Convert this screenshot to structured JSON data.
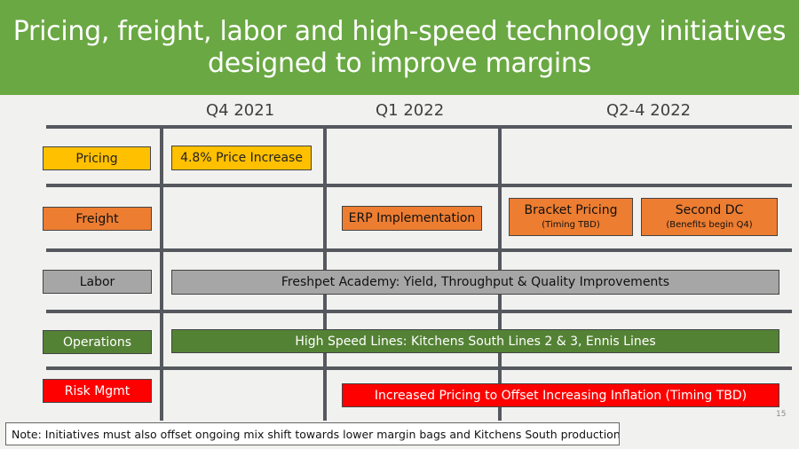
{
  "title": "Pricing, freight, labor and high-speed technology initiatives designed to improve margins",
  "columns": [
    "Q4 2021",
    "Q1 2022",
    "Q2-4 2022"
  ],
  "rows": {
    "pricing": "Pricing",
    "freight": "Freight",
    "labor": "Labor",
    "operations": "Operations",
    "risk": "Risk Mgmt"
  },
  "initiatives": {
    "price_increase": "4.8% Price Increase",
    "erp": "ERP Implementation",
    "bracket_pricing": "Bracket Pricing",
    "bracket_pricing_note": "(Timing TBD)",
    "second_dc": "Second DC",
    "second_dc_note": "(Benefits begin Q4)",
    "academy": "Freshpet Academy:  Yield, Throughput & Quality Improvements",
    "high_speed": "High Speed Lines:  Kitchens South Lines 2 & 3, Ennis Lines",
    "inflation": "Increased Pricing to Offset Increasing Inflation (Timing TBD)"
  },
  "page_number": "15",
  "note": "Note:  Initiatives must also offset ongoing mix shift towards lower margin bags and Kitchens South production",
  "colors": {
    "header_green": "#6aa843",
    "yellow": "#ffc000",
    "orange": "#ed7d31",
    "gray": "#a6a6a6",
    "green": "#548235",
    "red": "#ff0000",
    "grid": "#55585e"
  }
}
